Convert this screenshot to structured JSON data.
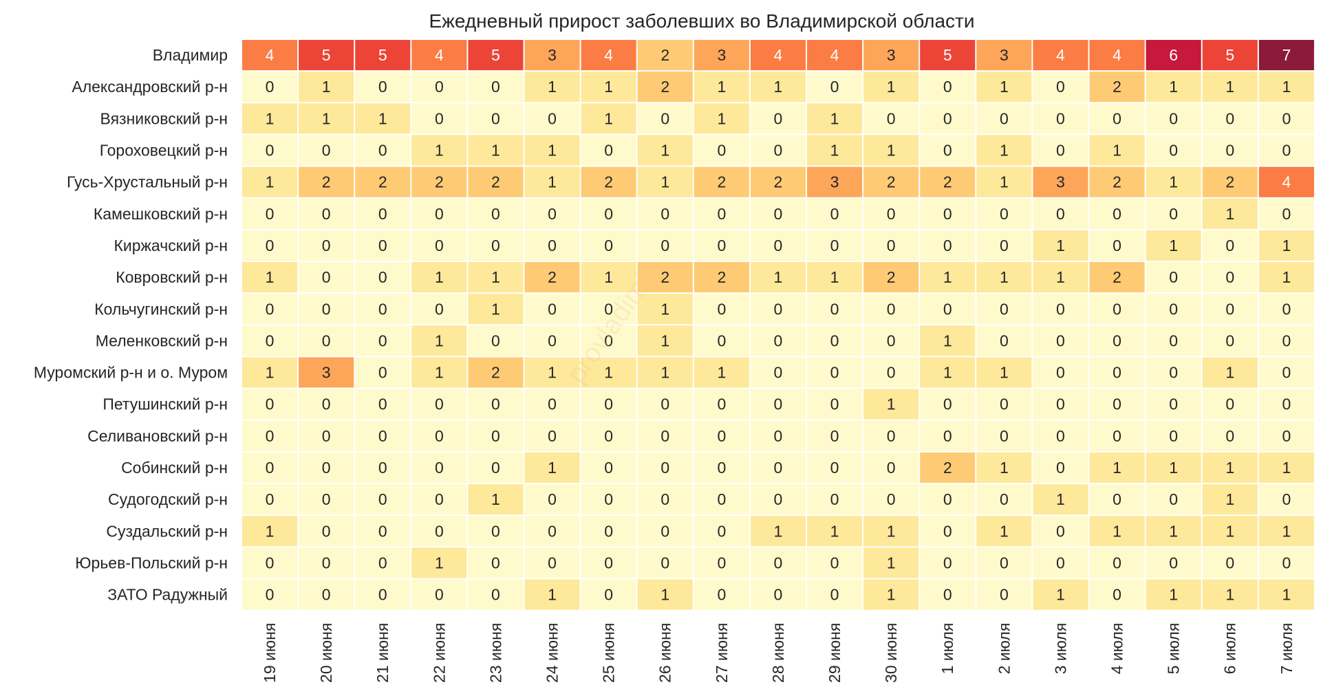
{
  "chart_data": {
    "type": "heatmap",
    "title": "Ежедневный прирост заболевших во Владимирской области",
    "watermark": "provladimir",
    "columns": [
      "19 июня",
      "20 июня",
      "21 июня",
      "22 июня",
      "23 июня",
      "24 июня",
      "25 июня",
      "26 июня",
      "27 июня",
      "28 июня",
      "29 июня",
      "30 июня",
      "1 июля",
      "2 июля",
      "3 июля",
      "4 июля",
      "5 июля",
      "6 июля",
      "7 июля"
    ],
    "rows": [
      "Владимир",
      "Александровский р-н",
      "Вязниковский р-н",
      "Гороховецкий р-н",
      "Гусь-Хрустальный р-н",
      "Камешковский р-н",
      "Киржачский р-н",
      "Ковровский р-н",
      "Кольчугинский р-н",
      "Меленковский р-н",
      "Муромский р-н и о. Муром",
      "Петушинский р-н",
      "Селивановский р-н",
      "Собинский р-н",
      "Судогодский р-н",
      "Суздальский р-н",
      "Юрьев-Польский р-н",
      "ЗАТО Радужный"
    ],
    "values": [
      [
        4,
        5,
        5,
        4,
        5,
        3,
        4,
        2,
        3,
        4,
        4,
        3,
        5,
        3,
        4,
        4,
        6,
        5,
        7
      ],
      [
        0,
        1,
        0,
        0,
        0,
        1,
        1,
        2,
        1,
        1,
        0,
        1,
        0,
        1,
        0,
        2,
        1,
        1,
        1
      ],
      [
        1,
        1,
        1,
        0,
        0,
        0,
        1,
        0,
        1,
        0,
        1,
        0,
        0,
        0,
        0,
        0,
        0,
        0,
        0
      ],
      [
        0,
        0,
        0,
        1,
        1,
        1,
        0,
        1,
        0,
        0,
        1,
        1,
        0,
        1,
        0,
        1,
        0,
        0,
        0
      ],
      [
        1,
        2,
        2,
        2,
        2,
        1,
        2,
        1,
        2,
        2,
        3,
        2,
        2,
        1,
        3,
        2,
        1,
        2,
        4
      ],
      [
        0,
        0,
        0,
        0,
        0,
        0,
        0,
        0,
        0,
        0,
        0,
        0,
        0,
        0,
        0,
        0,
        0,
        1,
        0
      ],
      [
        0,
        0,
        0,
        0,
        0,
        0,
        0,
        0,
        0,
        0,
        0,
        0,
        0,
        0,
        1,
        0,
        1,
        0,
        1
      ],
      [
        1,
        0,
        0,
        1,
        1,
        2,
        1,
        2,
        2,
        1,
        1,
        2,
        1,
        1,
        1,
        2,
        0,
        0,
        1
      ],
      [
        0,
        0,
        0,
        0,
        1,
        0,
        0,
        1,
        0,
        0,
        0,
        0,
        0,
        0,
        0,
        0,
        0,
        0,
        0
      ],
      [
        0,
        0,
        0,
        1,
        0,
        0,
        0,
        1,
        0,
        0,
        0,
        0,
        1,
        0,
        0,
        0,
        0,
        0,
        0
      ],
      [
        1,
        3,
        0,
        1,
        2,
        1,
        1,
        1,
        1,
        0,
        0,
        0,
        1,
        1,
        0,
        0,
        0,
        1,
        0
      ],
      [
        0,
        0,
        0,
        0,
        0,
        0,
        0,
        0,
        0,
        0,
        0,
        1,
        0,
        0,
        0,
        0,
        0,
        0,
        0
      ],
      [
        0,
        0,
        0,
        0,
        0,
        0,
        0,
        0,
        0,
        0,
        0,
        0,
        0,
        0,
        0,
        0,
        0,
        0,
        0
      ],
      [
        0,
        0,
        0,
        0,
        0,
        1,
        0,
        0,
        0,
        0,
        0,
        0,
        2,
        1,
        0,
        1,
        1,
        1,
        1
      ],
      [
        0,
        0,
        0,
        0,
        1,
        0,
        0,
        0,
        0,
        0,
        0,
        0,
        0,
        0,
        1,
        0,
        0,
        1,
        0
      ],
      [
        1,
        0,
        0,
        0,
        0,
        0,
        0,
        0,
        0,
        1,
        1,
        1,
        0,
        1,
        0,
        1,
        1,
        1,
        1
      ],
      [
        0,
        0,
        0,
        1,
        0,
        0,
        0,
        0,
        0,
        0,
        0,
        1,
        0,
        0,
        0,
        0,
        0,
        0,
        0
      ],
      [
        0,
        0,
        0,
        0,
        0,
        1,
        0,
        1,
        0,
        0,
        0,
        1,
        0,
        0,
        1,
        0,
        1,
        1,
        1
      ]
    ],
    "value_range": [
      0,
      7
    ],
    "colors": {
      "0": "#fffacc",
      "1": "#fee89a",
      "2": "#fecb74",
      "3": "#fda65a",
      "4": "#fb7c44",
      "5": "#ec4537",
      "6": "#c6193b",
      "7": "#8b1a3a",
      "text_dark": "#262626",
      "text_light": "#ffffff"
    },
    "legend": "none",
    "grid": false
  }
}
